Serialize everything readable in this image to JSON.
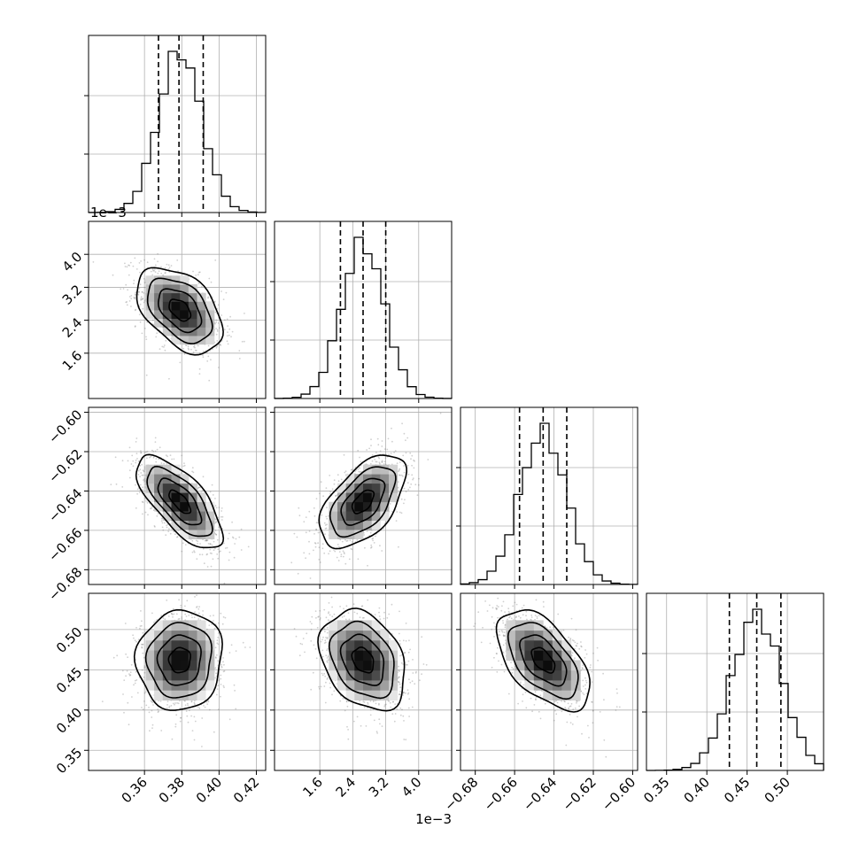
{
  "chart_data": {
    "type": "corner",
    "grid": true,
    "parameters": [
      {
        "range": [
          0.33,
          0.425
        ],
        "ticks": [
          "0.36",
          "0.38",
          "0.40",
          "0.42"
        ],
        "tick_values": [
          0.36,
          0.38,
          0.4,
          0.42
        ],
        "offset_label": "",
        "quantiles": [
          0.3675,
          0.3785,
          0.3915
        ],
        "mean": 0.379,
        "sd": 0.0115
      },
      {
        "range": [
          0.5,
          4.8
        ],
        "ticks": [
          "1.6",
          "2.4",
          "3.2",
          "4.0"
        ],
        "tick_values": [
          1.6,
          2.4,
          3.2,
          4.0
        ],
        "offset_label": "1e−3",
        "quantiles": [
          2.1,
          2.65,
          3.2
        ],
        "mean": 2.65,
        "sd": 0.52
      },
      {
        "range": [
          -0.6875,
          -0.5975
        ],
        "ticks": [
          "−0.68",
          "−0.66",
          "−0.64",
          "−0.62",
          "−0.60"
        ],
        "tick_values": [
          -0.68,
          -0.66,
          -0.64,
          -0.62,
          -0.6
        ],
        "offset_label": "",
        "quantiles": [
          -0.6575,
          -0.6455,
          -0.6335
        ],
        "mean": -0.6455,
        "sd": 0.0118
      },
      {
        "range": [
          0.325,
          0.545
        ],
        "ticks": [
          "0.35",
          "0.40",
          "0.45",
          "0.50"
        ],
        "tick_values": [
          0.35,
          0.4,
          0.45,
          0.5
        ],
        "offset_label": "",
        "quantiles": [
          0.428,
          0.462,
          0.492
        ],
        "mean": 0.462,
        "sd": 0.031
      }
    ],
    "correlations": [
      [
        1,
        -0.45,
        -0.7,
        0.05
      ],
      [
        -0.45,
        1,
        0.55,
        -0.3
      ],
      [
        -0.7,
        0.55,
        1,
        -0.55
      ],
      [
        0.05,
        -0.3,
        -0.55,
        1
      ]
    ],
    "contour_levels": [
      0.5,
      1.0,
      1.5,
      2.0
    ]
  }
}
